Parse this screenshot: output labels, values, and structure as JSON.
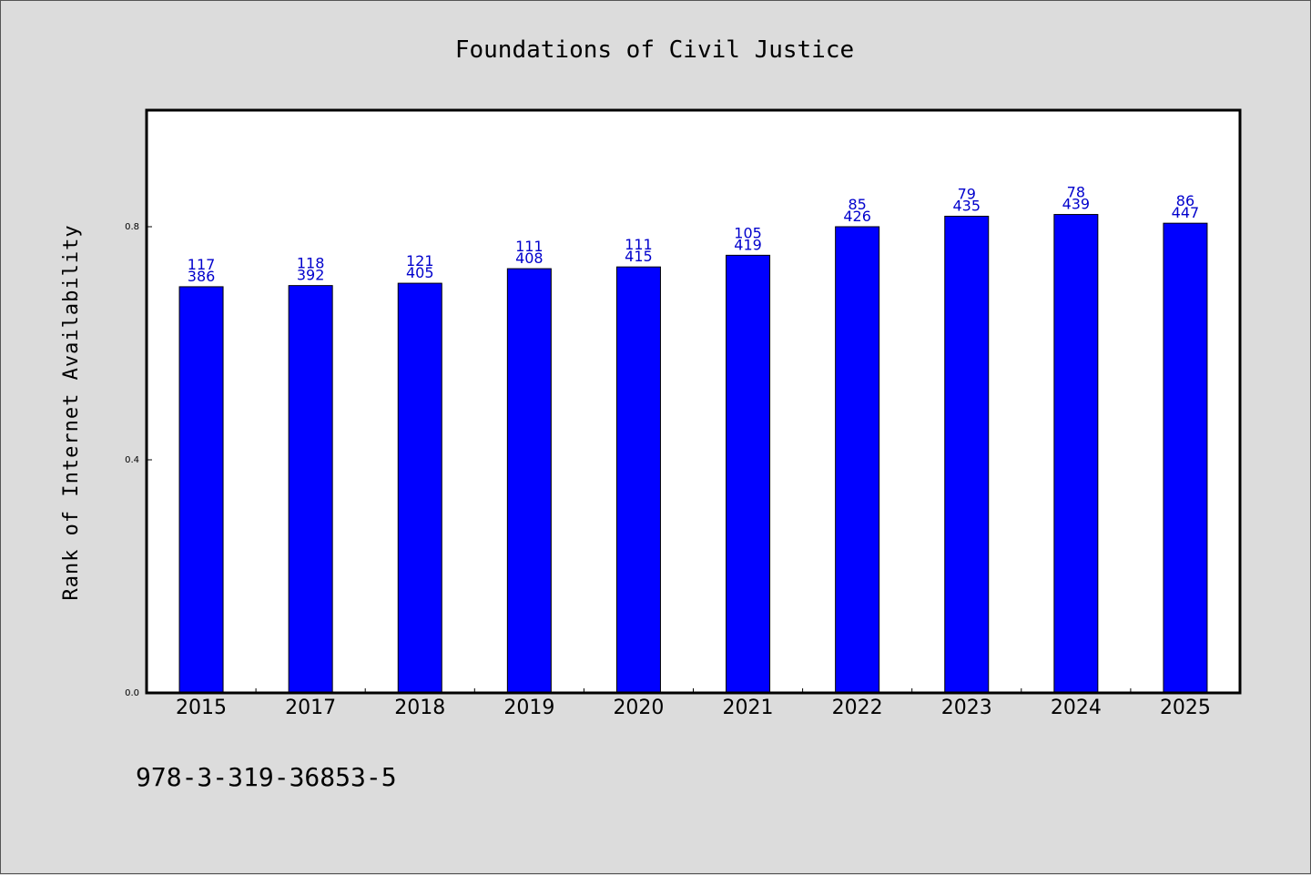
{
  "chart_data": {
    "type": "bar",
    "title": "Foundations of Civil Justice",
    "ylabel": "Rank of Internet Availability",
    "xlabel": "",
    "categories": [
      "2015",
      "2017",
      "2018",
      "2019",
      "2020",
      "2021",
      "2022",
      "2023",
      "2024",
      "2025"
    ],
    "values": [
      0.697,
      0.699,
      0.703,
      0.728,
      0.731,
      0.751,
      0.8,
      0.818,
      0.821,
      0.806
    ],
    "labels_top": [
      "117",
      "118",
      "121",
      "111",
      "111",
      "105",
      "85",
      "79",
      "78",
      "86"
    ],
    "labels_bottom": [
      "386",
      "392",
      "405",
      "408",
      "415",
      "419",
      "426",
      "435",
      "439",
      "447"
    ],
    "ylim": [
      0,
      1.0
    ],
    "yticks": [
      "0.0",
      "0.4",
      "0.8"
    ],
    "bar_color": "#0000ff",
    "label_color": "#0000cc",
    "grid": false,
    "legend": "none"
  },
  "footer": {
    "isbn": "978-3-319-36853-5"
  }
}
